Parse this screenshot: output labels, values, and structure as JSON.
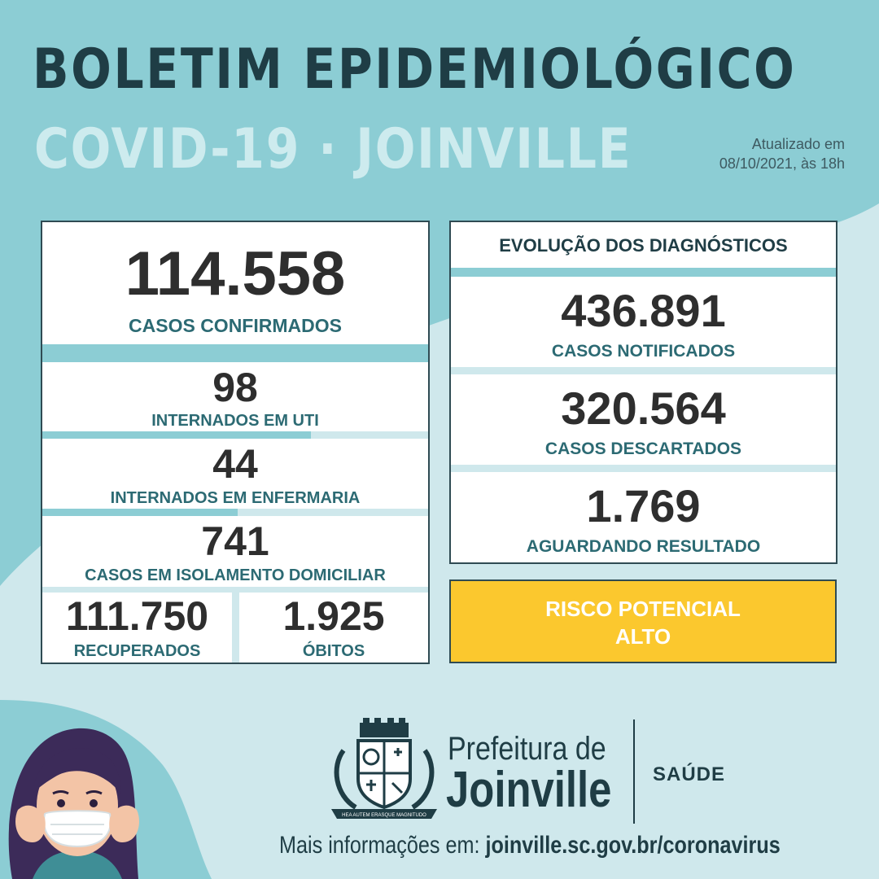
{
  "header": {
    "title": "BOLETIM EPIDEMIOLÓGICO",
    "subtitle": "COVID-19 · JOINVILLE",
    "updated_line1": "Atualizado em",
    "updated_line2": "08/10/2021, às 18h"
  },
  "left_panel": {
    "confirmed": {
      "value": "114.558",
      "label": "CASOS CONFIRMADOS"
    },
    "icu": {
      "value": "98",
      "label": "INTERNADOS EM UTI"
    },
    "ward": {
      "value": "44",
      "label": "INTERNADOS EM ENFERMARIA"
    },
    "home_isolation": {
      "value": "741",
      "label": "CASOS EM ISOLAMENTO DOMICILIAR"
    },
    "recovered": {
      "value": "111.750",
      "label": "RECUPERADOS"
    },
    "deaths": {
      "value": "1.925",
      "label": "ÓBITOS"
    }
  },
  "right_panel": {
    "heading": "EVOLUÇÃO DOS DIAGNÓSTICOS",
    "notified": {
      "value": "436.891",
      "label": "CASOS NOTIFICADOS"
    },
    "discarded": {
      "value": "320.564",
      "label": "CASOS DESCARTADOS"
    },
    "awaiting": {
      "value": "1.769",
      "label": "AGUARDANDO RESULTADO"
    }
  },
  "risk": {
    "line1": "RISCO POTENCIAL",
    "line2": "ALTO"
  },
  "footer": {
    "org_line1": "Prefeitura de",
    "org_line2": "Joinville",
    "department": "SAÚDE",
    "more_info_prefix": "Mais informações em: ",
    "more_info_url": "joinville.sc.gov.br/coronavirus",
    "crest_motto": "HEA AUTEM ERASQUE MAGNITUDO"
  },
  "colors": {
    "background": "#cfe8ec",
    "teal": "#8ccdd4",
    "dark": "#1f3d45",
    "label": "#2c6a73",
    "risk": "#fbc82e"
  },
  "icons": [
    "joinville-crest-icon",
    "woman-with-mask-illustration"
  ]
}
